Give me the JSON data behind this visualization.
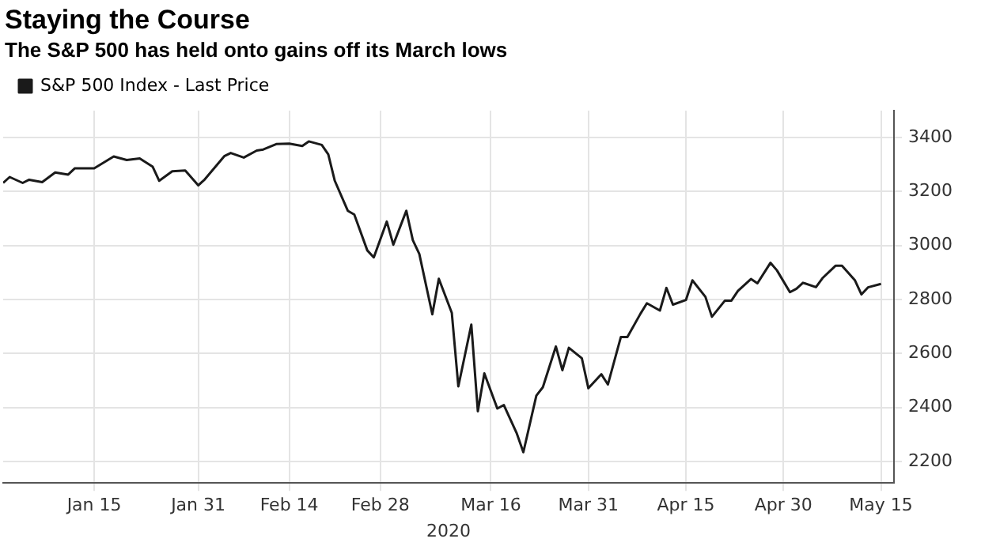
{
  "chart_data": {
    "type": "line",
    "title": "Staying the Course",
    "subtitle": "The S&P 500 has held onto gains off its March lows",
    "xlabel": "2020",
    "x": [
      "2020-01-01",
      "2020-01-02",
      "2020-01-04",
      "2020-01-05",
      "2020-01-07",
      "2020-01-09",
      "2020-01-11",
      "2020-01-12",
      "2020-01-15",
      "2020-01-18",
      "2020-01-20",
      "2020-01-22",
      "2020-01-24",
      "2020-01-25",
      "2020-01-27",
      "2020-01-29",
      "2020-01-31",
      "2020-02-01",
      "2020-02-04",
      "2020-02-05",
      "2020-02-07",
      "2020-02-09",
      "2020-02-10",
      "2020-02-12",
      "2020-02-14",
      "2020-02-16",
      "2020-02-17",
      "2020-02-19",
      "2020-02-20",
      "2020-02-21",
      "2020-02-23",
      "2020-02-24",
      "2020-02-26",
      "2020-02-27",
      "2020-02-29",
      "2020-03-01",
      "2020-03-03",
      "2020-03-04",
      "2020-03-05",
      "2020-03-07",
      "2020-03-08",
      "2020-03-10",
      "2020-03-11",
      "2020-03-13",
      "2020-03-14",
      "2020-03-15",
      "2020-03-17",
      "2020-03-18",
      "2020-03-20",
      "2020-03-21",
      "2020-03-23",
      "2020-03-24",
      "2020-03-26",
      "2020-03-27",
      "2020-03-28",
      "2020-03-30",
      "2020-03-31",
      "2020-04-02",
      "2020-04-03",
      "2020-04-05",
      "2020-04-06",
      "2020-04-08",
      "2020-04-09",
      "2020-04-11",
      "2020-04-12",
      "2020-04-13",
      "2020-04-15",
      "2020-04-16",
      "2020-04-18",
      "2020-04-19",
      "2020-04-21",
      "2020-04-22",
      "2020-04-23",
      "2020-04-25",
      "2020-04-26",
      "2020-04-28",
      "2020-04-29",
      "2020-05-01",
      "2020-05-02",
      "2020-05-03",
      "2020-05-05",
      "2020-05-06",
      "2020-05-08",
      "2020-05-09",
      "2020-05-11",
      "2020-05-12",
      "2020-05-13",
      "2020-05-15"
    ],
    "series": [
      {
        "name": "S&P 500 Index - Last Price",
        "color": "#1a1a1a",
        "values": [
          3232,
          3254,
          3232,
          3244,
          3235,
          3271,
          3263,
          3286,
          3286,
          3330,
          3317,
          3323,
          3292,
          3240,
          3275,
          3278,
          3223,
          3245,
          3331,
          3343,
          3326,
          3352,
          3356,
          3376,
          3378,
          3369,
          3386,
          3373,
          3338,
          3240,
          3129,
          3115,
          2982,
          2956,
          3089,
          3003,
          3129,
          3020,
          2969,
          2745,
          2877,
          2750,
          2478,
          2707,
          2386,
          2526,
          2396,
          2409,
          2303,
          2234,
          2444,
          2475,
          2626,
          2538,
          2621,
          2582,
          2471,
          2523,
          2485,
          2661,
          2661,
          2747,
          2786,
          2759,
          2843,
          2781,
          2798,
          2871,
          2810,
          2736,
          2796,
          2796,
          2832,
          2876,
          2860,
          2936,
          2908,
          2827,
          2840,
          2862,
          2846,
          2879,
          2925,
          2925,
          2871,
          2819,
          2845,
          2858
        ]
      }
    ],
    "xlim": [
      "2020-01-01",
      "2020-05-17"
    ],
    "xticks": [
      {
        "value": "2020-01-15",
        "label": "Jan 15"
      },
      {
        "value": "2020-01-31",
        "label": "Jan 31"
      },
      {
        "value": "2020-02-14",
        "label": "Feb 14"
      },
      {
        "value": "2020-02-28",
        "label": "Feb 28"
      },
      {
        "value": "2020-03-16",
        "label": "Mar 16"
      },
      {
        "value": "2020-03-31",
        "label": "Mar 31"
      },
      {
        "value": "2020-04-15",
        "label": "Apr 15"
      },
      {
        "value": "2020-04-30",
        "label": "Apr 30"
      },
      {
        "value": "2020-05-15",
        "label": "May 15"
      }
    ],
    "ylim": [
      2120,
      3500
    ],
    "yticks": [
      2200,
      2400,
      2600,
      2800,
      3000,
      3200,
      3400
    ],
    "grid": true,
    "legend": "top left",
    "marker": "none",
    "line_style": "solid"
  }
}
